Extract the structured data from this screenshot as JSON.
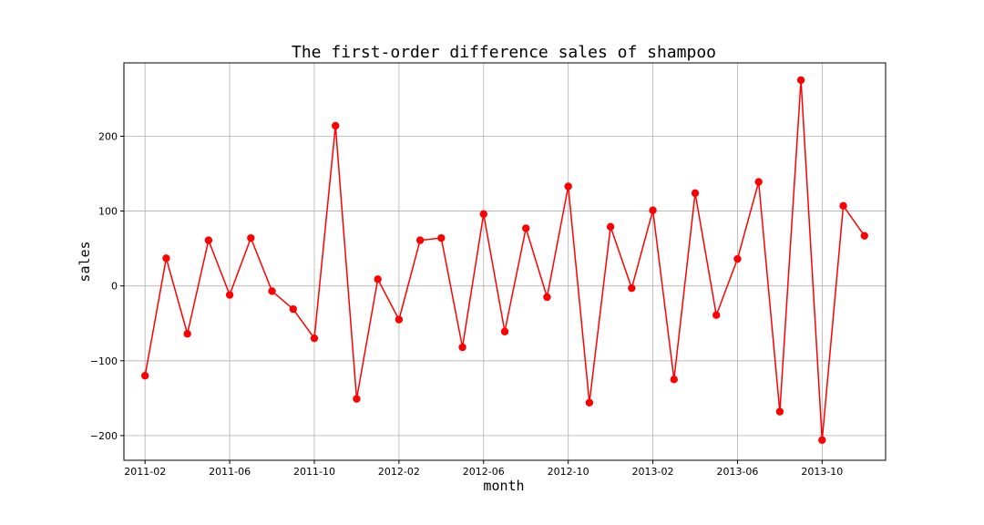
{
  "chart_data": {
    "type": "line",
    "title": "The first-order difference sales of shampoo",
    "xlabel": "month",
    "ylabel": "sales",
    "x": [
      "2011-02",
      "2011-03",
      "2011-04",
      "2011-05",
      "2011-06",
      "2011-07",
      "2011-08",
      "2011-09",
      "2011-10",
      "2011-11",
      "2011-12",
      "2012-01",
      "2012-02",
      "2012-03",
      "2012-04",
      "2012-05",
      "2012-06",
      "2012-07",
      "2012-08",
      "2012-09",
      "2012-10",
      "2012-11",
      "2012-12",
      "2013-01",
      "2013-02",
      "2013-03",
      "2013-04",
      "2013-05",
      "2013-06",
      "2013-07",
      "2013-08",
      "2013-09",
      "2013-10",
      "2013-11",
      "2013-12"
    ],
    "series": [
      {
        "name": "",
        "values": [
          -120,
          37,
          -64,
          61,
          -12,
          64,
          -7,
          -31,
          -70,
          214,
          -151,
          9,
          -45,
          61,
          64,
          -82,
          96,
          -61,
          77,
          -15,
          133,
          -156,
          79,
          -3,
          101,
          -125,
          124,
          -39,
          36,
          139,
          -168,
          275,
          -206,
          107,
          67
        ]
      }
    ],
    "x_ticks": [
      "2011-02",
      "2011-06",
      "2011-10",
      "2012-02",
      "2012-06",
      "2012-10",
      "2013-02",
      "2013-06",
      "2013-10"
    ],
    "y_ticks": [
      -200,
      -100,
      0,
      100,
      200
    ],
    "xlim": [
      "2011-01",
      "2014-01"
    ],
    "ylim": [
      -233,
      298
    ],
    "grid": true,
    "line_color": "#ff0000",
    "marker_color": "#ff0000"
  }
}
